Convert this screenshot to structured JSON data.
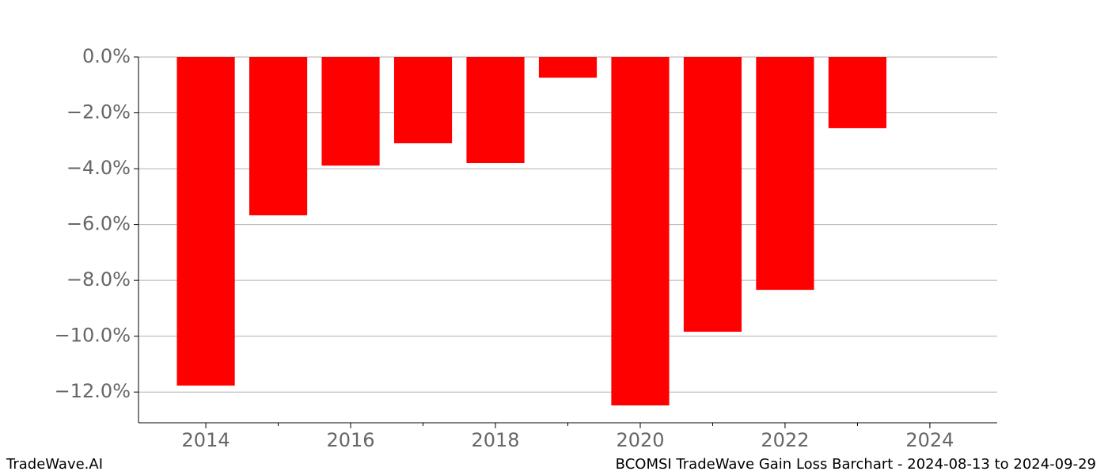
{
  "chart_data": {
    "type": "bar",
    "x": [
      2014,
      2015,
      2016,
      2017,
      2018,
      2019,
      2020,
      2021,
      2022,
      2023
    ],
    "values": [
      -11.77,
      -5.67,
      -3.89,
      -3.09,
      -3.8,
      -0.74,
      -12.48,
      -9.84,
      -8.34,
      -2.55
    ],
    "color": "#ff0000",
    "xlim": [
      2013.07,
      2024.93
    ],
    "xticks": [
      2014,
      2016,
      2018,
      2020,
      2022,
      2024
    ],
    "xminorticks": [
      2015,
      2017,
      2019,
      2021,
      2023
    ],
    "ylim": [
      -13.1,
      0
    ],
    "yticks": [
      {
        "value": 0,
        "label": "0.0%"
      },
      {
        "value": -2,
        "label": "−2.0%"
      },
      {
        "value": -4,
        "label": "−4.0%"
      },
      {
        "value": -6,
        "label": "−6.0%"
      },
      {
        "value": -8,
        "label": "−8.0%"
      },
      {
        "value": -10,
        "label": "−10.0%"
      },
      {
        "value": -12,
        "label": "−12.0%"
      }
    ],
    "grid": true,
    "footer_left": "TradeWave.AI",
    "footer_right": "BCOMSI TradeWave Gain Loss Barchart - 2024-08-13 to 2024-09-29"
  }
}
